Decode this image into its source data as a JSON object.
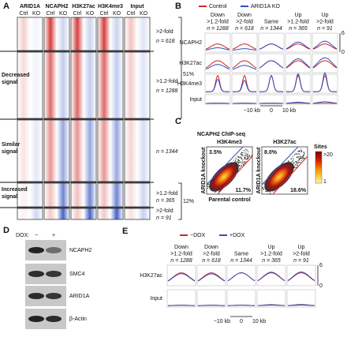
{
  "panel_a": {
    "letter": "A",
    "columns": [
      "ARID1A",
      "NCAPH2",
      "H3K27ac",
      "H3K4me3",
      "Input"
    ],
    "ctrl": "Ctrl",
    "ko": "KO",
    "row_groups": [
      [
        "Decreased",
        "signal"
      ],
      [
        "Similar",
        "signal"
      ],
      [
        "Increased",
        "signal"
      ]
    ],
    "clusters": [
      {
        "fold": ">2-fold",
        "n": "n = 618"
      },
      {
        "fold": ">1.2-fold",
        "n": "n = 1288"
      },
      {
        "n": "n = 1344"
      },
      {
        "fold": ">1.2-fold",
        "n": "n = 365"
      },
      {
        "fold": ">2-fold",
        "n": "n = 91"
      }
    ],
    "brackets": [
      "51%",
      "12%"
    ]
  },
  "panel_b": {
    "letter": "B",
    "legend": [
      "Control",
      "ARID1A KO"
    ],
    "columns": [
      [
        "Down",
        ">1.2-fold",
        "n = 1288"
      ],
      [
        "Down",
        ">2-fold",
        "n = 618"
      ],
      [
        "Same",
        "n = 1344"
      ],
      [
        "Up",
        ">1.2-fold",
        "n = 365"
      ],
      [
        "Up",
        ">2-fold",
        "n = 91"
      ]
    ],
    "rows": [
      "NCAPH2",
      "H3K27ac",
      "H3K4me3",
      "Input"
    ],
    "scale": [
      "6",
      "0"
    ],
    "x_axis": [
      "−10 kb",
      "0",
      "10 kb"
    ]
  },
  "panel_c": {
    "letter": "C",
    "title": "NCAPH2 ChIP-seq",
    "plots": [
      {
        "title": "H3K4me3",
        "up": "3.5%",
        "down": "11.7%"
      },
      {
        "title": "H3K27ac",
        "up": "8.0%",
        "down": "18.6%"
      }
    ],
    "y_label": "ARID1A knockout",
    "x_label": "Parental control",
    "colorbar": {
      "title": "Sites",
      "max": ">20",
      "min": "1"
    }
  },
  "panel_d": {
    "letter": "D",
    "dox": "DOX:",
    "conditions": [
      "−",
      "+"
    ],
    "blots": [
      "NCAPH2",
      "SMC4",
      "ARID1A",
      "β-Actin"
    ]
  },
  "panel_e": {
    "letter": "E",
    "legend": [
      "−DOX",
      "+DOX"
    ],
    "columns": [
      [
        "Down",
        ">1.2-fold",
        "n = 1288"
      ],
      [
        "Down",
        ">2-fold",
        "n = 618"
      ],
      [
        "Same",
        "n = 1344"
      ],
      [
        "Up",
        ">1.2-fold",
        "n = 365"
      ],
      [
        "Up",
        ">2-fold",
        "n = 91"
      ]
    ],
    "rows": [
      "H3K27ac",
      "Input"
    ],
    "scale": [
      "6",
      "0"
    ],
    "x_axis": [
      "−10 kb",
      "0",
      "10 kb"
    ]
  }
}
